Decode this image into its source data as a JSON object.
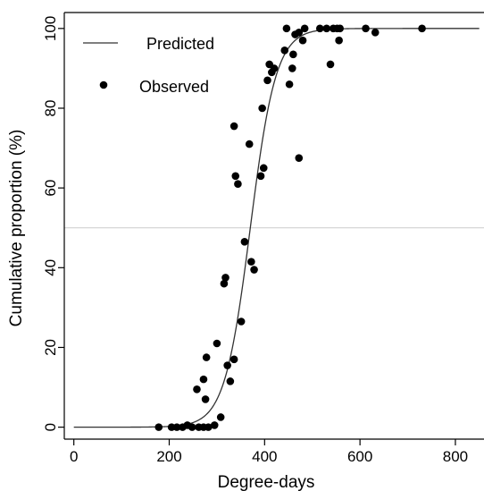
{
  "chart_data": {
    "type": "scatter",
    "title": "",
    "xlabel": "Degree-days",
    "ylabel": "Cumulative proportion (%)",
    "xlim": [
      -20,
      860
    ],
    "ylim": [
      -3,
      104
    ],
    "xticks": [
      0,
      200,
      400,
      600,
      800
    ],
    "yticks": [
      0,
      20,
      40,
      60,
      80,
      100
    ],
    "grid": false,
    "legend_position": "top-left",
    "reference_line": {
      "y": 50,
      "color": "#cccccc"
    },
    "series": [
      {
        "name": "Predicted",
        "kind": "line",
        "color": "#333333",
        "model": "logistic",
        "params": {
          "midpoint": 370,
          "scale": 27
        },
        "x_range": [
          0,
          850
        ]
      },
      {
        "name": "Observed",
        "kind": "scatter",
        "color": "#000000",
        "points": [
          [
            178,
            0
          ],
          [
            205,
            0
          ],
          [
            216,
            0
          ],
          [
            228,
            0
          ],
          [
            238,
            0.5
          ],
          [
            248,
            0
          ],
          [
            262,
            0
          ],
          [
            272,
            0
          ],
          [
            282,
            0
          ],
          [
            295,
            0.5
          ],
          [
            258,
            9.5
          ],
          [
            272,
            12
          ],
          [
            278,
            17.5
          ],
          [
            276,
            7
          ],
          [
            300,
            21
          ],
          [
            308,
            2.5
          ],
          [
            315,
            36
          ],
          [
            318,
            37.5
          ],
          [
            322,
            15.5
          ],
          [
            328,
            11.5
          ],
          [
            336,
            17
          ],
          [
            336,
            75.5
          ],
          [
            339,
            63
          ],
          [
            344,
            61
          ],
          [
            351,
            26.5
          ],
          [
            358,
            46.5
          ],
          [
            368,
            71
          ],
          [
            372,
            41.5
          ],
          [
            378,
            39.5
          ],
          [
            392,
            63
          ],
          [
            398,
            65
          ],
          [
            395,
            80
          ],
          [
            406,
            87
          ],
          [
            410,
            91
          ],
          [
            415,
            89
          ],
          [
            420,
            90
          ],
          [
            442,
            94.5
          ],
          [
            446,
            100
          ],
          [
            452,
            86
          ],
          [
            458,
            90
          ],
          [
            460,
            93.5
          ],
          [
            464,
            98.5
          ],
          [
            472,
            67.5
          ],
          [
            472,
            99
          ],
          [
            480,
            97
          ],
          [
            484,
            100
          ],
          [
            516,
            100
          ],
          [
            530,
            100
          ],
          [
            538,
            91
          ],
          [
            544,
            100
          ],
          [
            552,
            100
          ],
          [
            556,
            97
          ],
          [
            558,
            100
          ],
          [
            612,
            100
          ],
          [
            632,
            99
          ],
          [
            730,
            100
          ]
        ]
      }
    ]
  }
}
